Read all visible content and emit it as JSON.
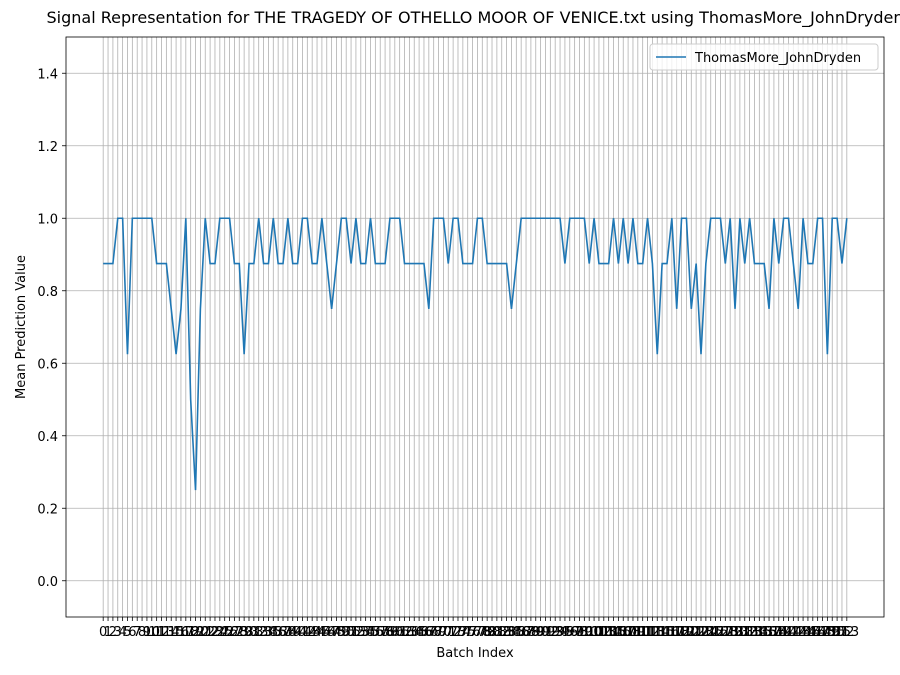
{
  "chart_data": {
    "type": "line",
    "title": "Signal Representation for THE TRAGEDY OF OTHELLO MOOR OF VENICE.txt using ThomasMore_JohnDryden",
    "xlabel": "Batch Index",
    "ylabel": "Mean Prediction Value",
    "x": [
      0,
      1,
      2,
      3,
      4,
      5,
      6,
      7,
      8,
      9,
      10,
      11,
      12,
      13,
      14,
      15,
      16,
      17,
      18,
      19,
      20,
      21,
      22,
      23,
      24,
      25,
      26,
      27,
      28,
      29,
      30,
      31,
      32,
      33,
      34,
      35,
      36,
      37,
      38,
      39,
      40,
      41,
      42,
      43,
      44,
      45,
      46,
      47,
      48,
      49,
      50,
      51,
      52,
      53,
      54,
      55,
      56,
      57,
      58,
      59,
      60,
      61,
      62,
      63,
      64,
      65,
      66,
      67,
      68,
      69,
      70,
      71,
      72,
      73,
      74,
      75,
      76,
      77,
      78,
      79,
      80,
      81,
      82,
      83,
      84,
      85,
      86,
      87,
      88,
      89,
      90,
      91,
      92,
      93,
      94,
      95,
      96,
      97,
      98,
      99,
      100,
      101,
      102,
      103,
      104,
      105,
      106,
      107,
      108,
      109,
      110,
      111,
      112,
      113,
      114,
      115,
      116,
      117,
      118,
      119,
      120,
      121,
      122,
      123,
      124,
      125,
      126,
      127,
      128,
      129,
      130,
      131,
      132,
      133,
      134,
      135,
      136,
      137,
      138,
      139,
      140,
      141,
      142,
      143,
      144,
      145,
      146,
      147,
      148,
      149,
      150,
      151,
      152,
      153
    ],
    "series": [
      {
        "name": "ThomasMore_JohnDryden",
        "color": "#1f77b4",
        "values": [
          0.875,
          0.875,
          0.875,
          1.0,
          1.0,
          0.625,
          1.0,
          1.0,
          1.0,
          1.0,
          1.0,
          0.875,
          0.875,
          0.875,
          0.75,
          0.625,
          0.75,
          1.0,
          0.5,
          0.25,
          0.75,
          1.0,
          0.875,
          0.875,
          1.0,
          1.0,
          1.0,
          0.875,
          0.875,
          0.625,
          0.875,
          0.875,
          1.0,
          0.875,
          0.875,
          1.0,
          0.875,
          0.875,
          1.0,
          0.875,
          0.875,
          1.0,
          1.0,
          0.875,
          0.875,
          1.0,
          0.875,
          0.75,
          0.875,
          1.0,
          1.0,
          0.875,
          1.0,
          0.875,
          0.875,
          1.0,
          0.875,
          0.875,
          0.875,
          1.0,
          1.0,
          1.0,
          0.875,
          0.875,
          0.875,
          0.875,
          0.875,
          0.75,
          1.0,
          1.0,
          1.0,
          0.875,
          1.0,
          1.0,
          0.875,
          0.875,
          0.875,
          1.0,
          1.0,
          0.875,
          0.875,
          0.875,
          0.875,
          0.875,
          0.75,
          0.875,
          1.0,
          1.0,
          1.0,
          1.0,
          1.0,
          1.0,
          1.0,
          1.0,
          1.0,
          0.875,
          1.0,
          1.0,
          1.0,
          1.0,
          0.875,
          1.0,
          0.875,
          0.875,
          0.875,
          1.0,
          0.875,
          1.0,
          0.875,
          1.0,
          0.875,
          0.875,
          1.0,
          0.875,
          0.625,
          0.875,
          0.875,
          1.0,
          0.75,
          1.0,
          1.0,
          0.75,
          0.875,
          0.625,
          0.875,
          1.0,
          1.0,
          1.0,
          0.875,
          1.0,
          0.75,
          1.0,
          0.875,
          1.0,
          0.875,
          0.875,
          0.875,
          0.75,
          1.0,
          0.875,
          1.0,
          1.0,
          0.875,
          0.75,
          1.0,
          0.875,
          0.875,
          1.0,
          1.0,
          0.625,
          1.0,
          1.0,
          0.875,
          1.0
        ]
      }
    ],
    "xlim": [
      -7.65,
      160.65
    ],
    "xticks": [
      0,
      1,
      2,
      3,
      4,
      5,
      6,
      7,
      8,
      9,
      10,
      11,
      12,
      13,
      14,
      15,
      16,
      17,
      18,
      19,
      20,
      21,
      22,
      23,
      24,
      25,
      26,
      27,
      28,
      29,
      30,
      31,
      32,
      33,
      34,
      35,
      36,
      37,
      38,
      39,
      40,
      41,
      42,
      43,
      44,
      45,
      46,
      47,
      48,
      49,
      50,
      51,
      52,
      53,
      54,
      55,
      56,
      57,
      58,
      59,
      60,
      61,
      62,
      63,
      64,
      65,
      66,
      67,
      68,
      69,
      70,
      71,
      72,
      73,
      74,
      75,
      76,
      77,
      78,
      79,
      80,
      81,
      82,
      83,
      84,
      85,
      86,
      87,
      88,
      89,
      90,
      91,
      92,
      93,
      94,
      95,
      96,
      97,
      98,
      99,
      100,
      101,
      102,
      103,
      104,
      105,
      106,
      107,
      108,
      109,
      110,
      111,
      112,
      113,
      114,
      115,
      116,
      117,
      118,
      119,
      120,
      121,
      122,
      123,
      124,
      125,
      126,
      127,
      128,
      129,
      130,
      131,
      132,
      133,
      134,
      135,
      136,
      137,
      138,
      139,
      140,
      141,
      142,
      143,
      144,
      145,
      146,
      147,
      148,
      149,
      150,
      151,
      152,
      153
    ],
    "ylim": [
      -0.1,
      1.5
    ],
    "yticks": [
      {
        "value": 0,
        "label": "0.0"
      },
      0.2,
      0.4,
      0.6,
      0.8,
      {
        "value": 1,
        "label": "1.0"
      },
      1.2,
      1.4
    ],
    "grid": true,
    "legend": "upper right"
  }
}
